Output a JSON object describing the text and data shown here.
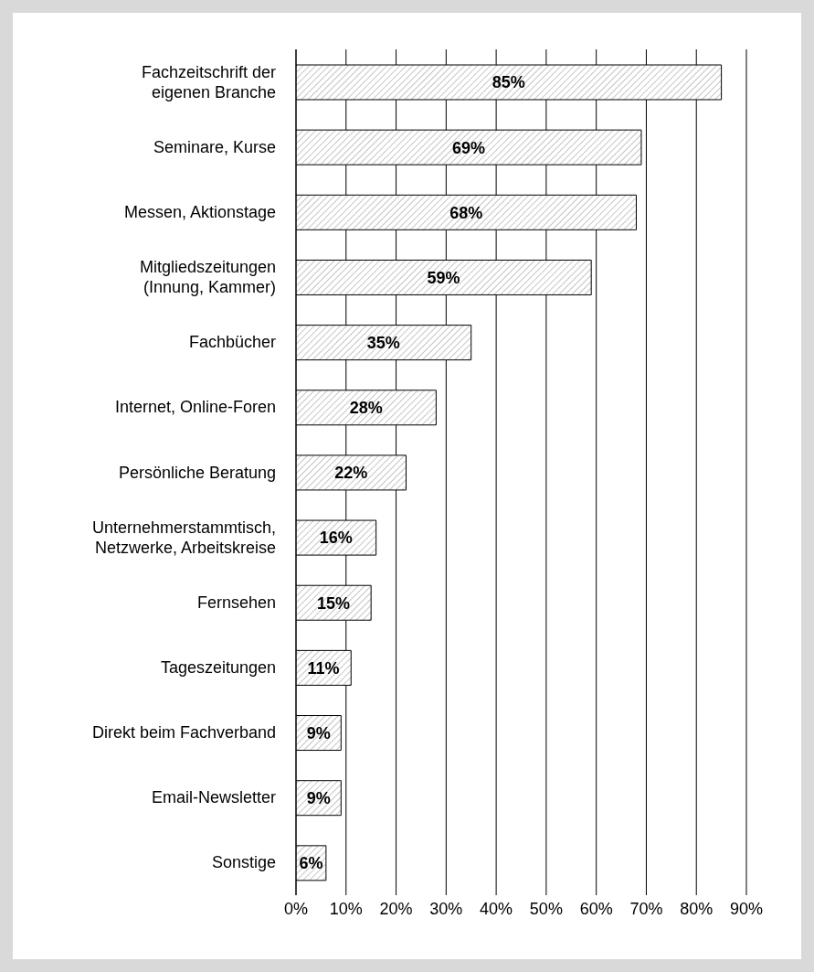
{
  "chart_data": {
    "type": "bar",
    "orientation": "horizontal",
    "categories": [
      "Fachzeitschrift der eigenen Branche",
      "Seminare, Kurse",
      "Messen, Aktionstage",
      "Mitgliedszeitungen (Innung, Kammer)",
      "Fachbücher",
      "Internet, Online-Foren",
      "Persönliche Beratung",
      "Unternehmerstammtisch, Netzwerke, Arbeitskreise",
      "Fernsehen",
      "Tageszeitungen",
      "Direkt beim Fachverband",
      "Email-Newsletter",
      "Sonstige"
    ],
    "values": [
      85,
      69,
      68,
      59,
      35,
      28,
      22,
      16,
      15,
      11,
      9,
      9,
      6
    ],
    "value_labels": [
      "85%",
      "69%",
      "68%",
      "59%",
      "35%",
      "28%",
      "22%",
      "16%",
      "15%",
      "11%",
      "9%",
      "9%",
      "6%"
    ],
    "color": "#000000",
    "xlim": [
      0,
      90
    ],
    "xticks": [
      {
        "value": 0,
        "label": "0%"
      },
      {
        "value": 10,
        "label": "10%"
      },
      {
        "value": 20,
        "label": "20%"
      },
      {
        "value": 30,
        "label": "30%"
      },
      {
        "value": 40,
        "label": "40%"
      },
      {
        "value": 50,
        "label": "50%"
      },
      {
        "value": 60,
        "label": "60%"
      },
      {
        "value": 70,
        "label": "70%"
      },
      {
        "value": 80,
        "label": "80%"
      },
      {
        "value": 90,
        "label": "90%"
      }
    ],
    "grid": "x"
  }
}
